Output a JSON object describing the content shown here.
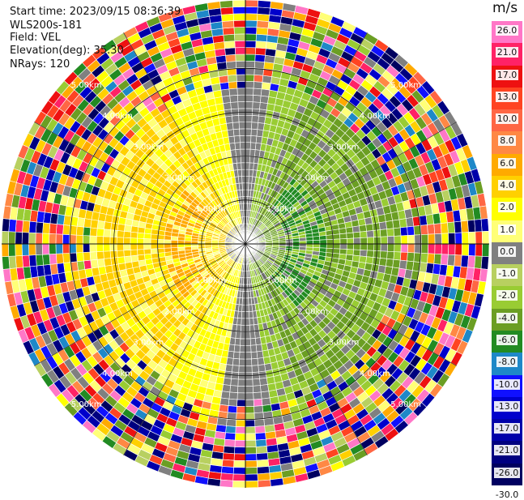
{
  "header": {
    "start_time": "Start time: 2023/09/15 08:36:39",
    "device": "WLS200s-181",
    "field": "Field: VEL",
    "elevation": "Elevation(deg): 35.30",
    "nrays": "NRays: 120"
  },
  "ppi": {
    "range_labels": [
      "1.00km",
      "2.00km",
      "3.00km",
      "4.00km",
      "5.00km"
    ],
    "max_range_km": 5
  },
  "colorbar": {
    "unit": "m/s",
    "ticks": [
      "26.0",
      "21.0",
      "17.0",
      "13.0",
      "10.0",
      "8.0",
      "6.0",
      "4.0",
      "2.0",
      "1.0",
      "0.0",
      "-1.0",
      "-2.0",
      "-4.0",
      "-6.0",
      "-8.0",
      "-10.0",
      "-13.0",
      "-17.0",
      "-21.0",
      "-26.0",
      "-30.0"
    ],
    "colors": [
      "#ff77c7",
      "#ff2266",
      "#ee1111",
      "#ff4422",
      "#ff6644",
      "#ff8844",
      "#ffaa00",
      "#ffd000",
      "#ffff00",
      "#ffff77",
      "#808080",
      "#b8d060",
      "#99cc33",
      "#6b9e23",
      "#228b22",
      "#1e88c8",
      "#1010ff",
      "#0000cc",
      "#0000aa",
      "#000080",
      "#000060"
    ]
  }
}
